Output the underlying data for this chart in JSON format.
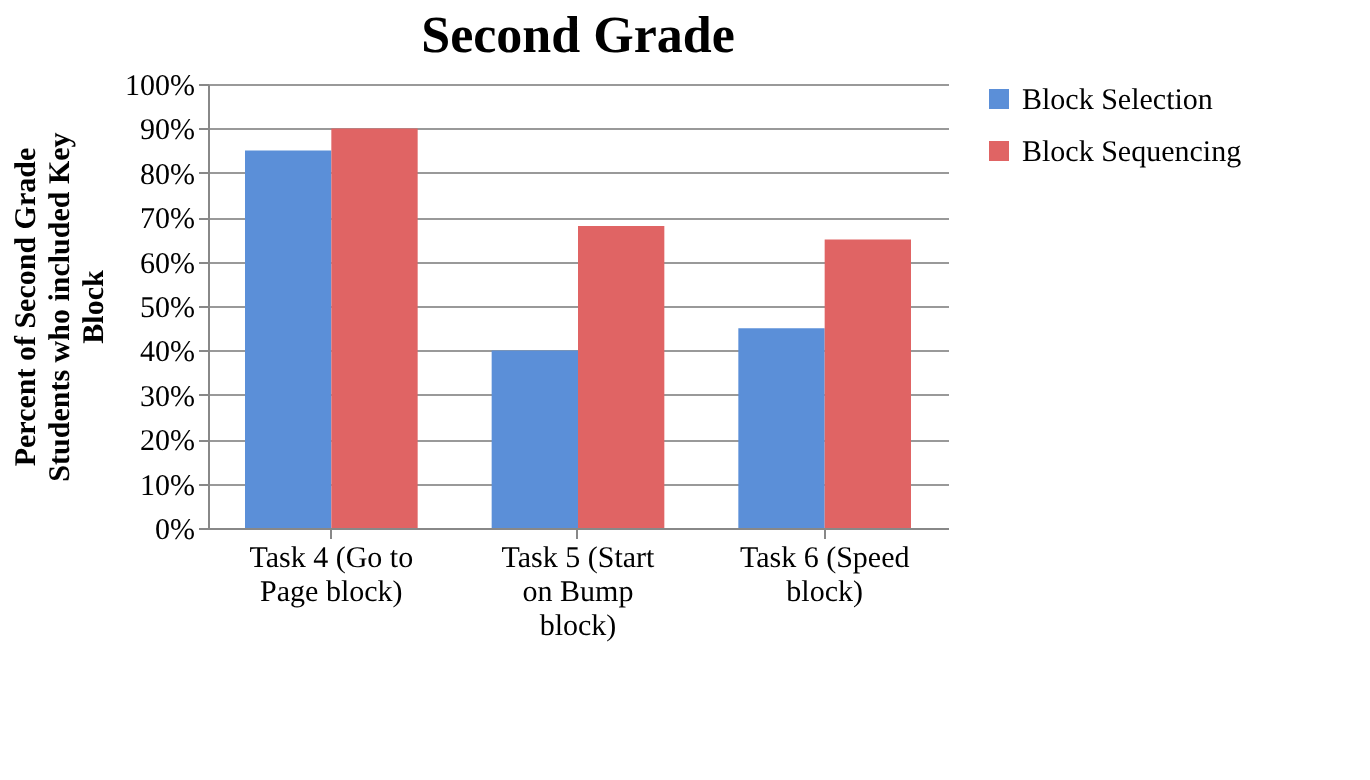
{
  "chart_data": {
    "type": "bar",
    "title": "Second Grade",
    "ylabel": "Percent of Second Grade Students who included Key Block",
    "categories": [
      "Task 4 (Go to Page block)",
      "Task 5 (Start on Bump block)",
      "Task 6 (Speed block)"
    ],
    "series": [
      {
        "name": "Block Selection",
        "color": "#5b8fd8",
        "values": [
          85,
          40,
          45
        ]
      },
      {
        "name": "Block Sequencing",
        "color": "#e06464",
        "values": [
          90,
          68,
          65
        ]
      }
    ],
    "ylim": [
      0,
      100
    ],
    "yticks": [
      {
        "value": 0,
        "label": "0%"
      },
      {
        "value": 10,
        "label": "10%"
      },
      {
        "value": 20,
        "label": "20%"
      },
      {
        "value": 30,
        "label": "30%"
      },
      {
        "value": 40,
        "label": "40%"
      },
      {
        "value": 50,
        "label": "50%"
      },
      {
        "value": 60,
        "label": "60%"
      },
      {
        "value": 70,
        "label": "70%"
      },
      {
        "value": 80,
        "label": "80%"
      },
      {
        "value": 90,
        "label": "90%"
      },
      {
        "value": 100,
        "label": "100%"
      }
    ],
    "grid": "y",
    "legend": "right"
  }
}
